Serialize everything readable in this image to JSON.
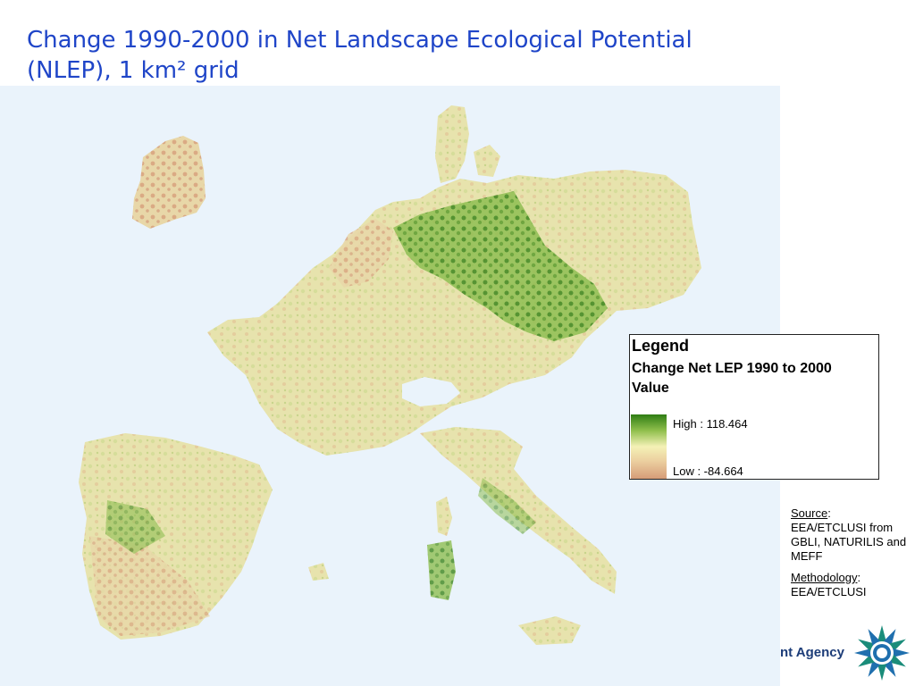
{
  "title": "Change 1990-2000 in Net Landscape Ecological Potential (NLEP), 1 km² grid",
  "legend": {
    "heading": "Legend",
    "subtitle": "Change Net LEP 1990 to 2000",
    "field": "Value",
    "high_label": "High : 118.464",
    "low_label": "Low : -84.664",
    "colors": {
      "high": "#2f7d14",
      "mid": "#f4f1b6",
      "low": "#d69c78"
    }
  },
  "source": {
    "source_label": "Source",
    "source_text": "EEA/ETCLUSI from GBLI, NATURILIS and MEFF",
    "method_label": "Methodology",
    "method_text": "EEA/ETCLUSI"
  },
  "footer": {
    "agency_text": "nt Agency",
    "logo_icon": "eea-sunburst-logo-icon"
  },
  "colors": {
    "title": "#1f45c8",
    "sea": "#eaf3fb",
    "land": "#e9e3a9"
  }
}
